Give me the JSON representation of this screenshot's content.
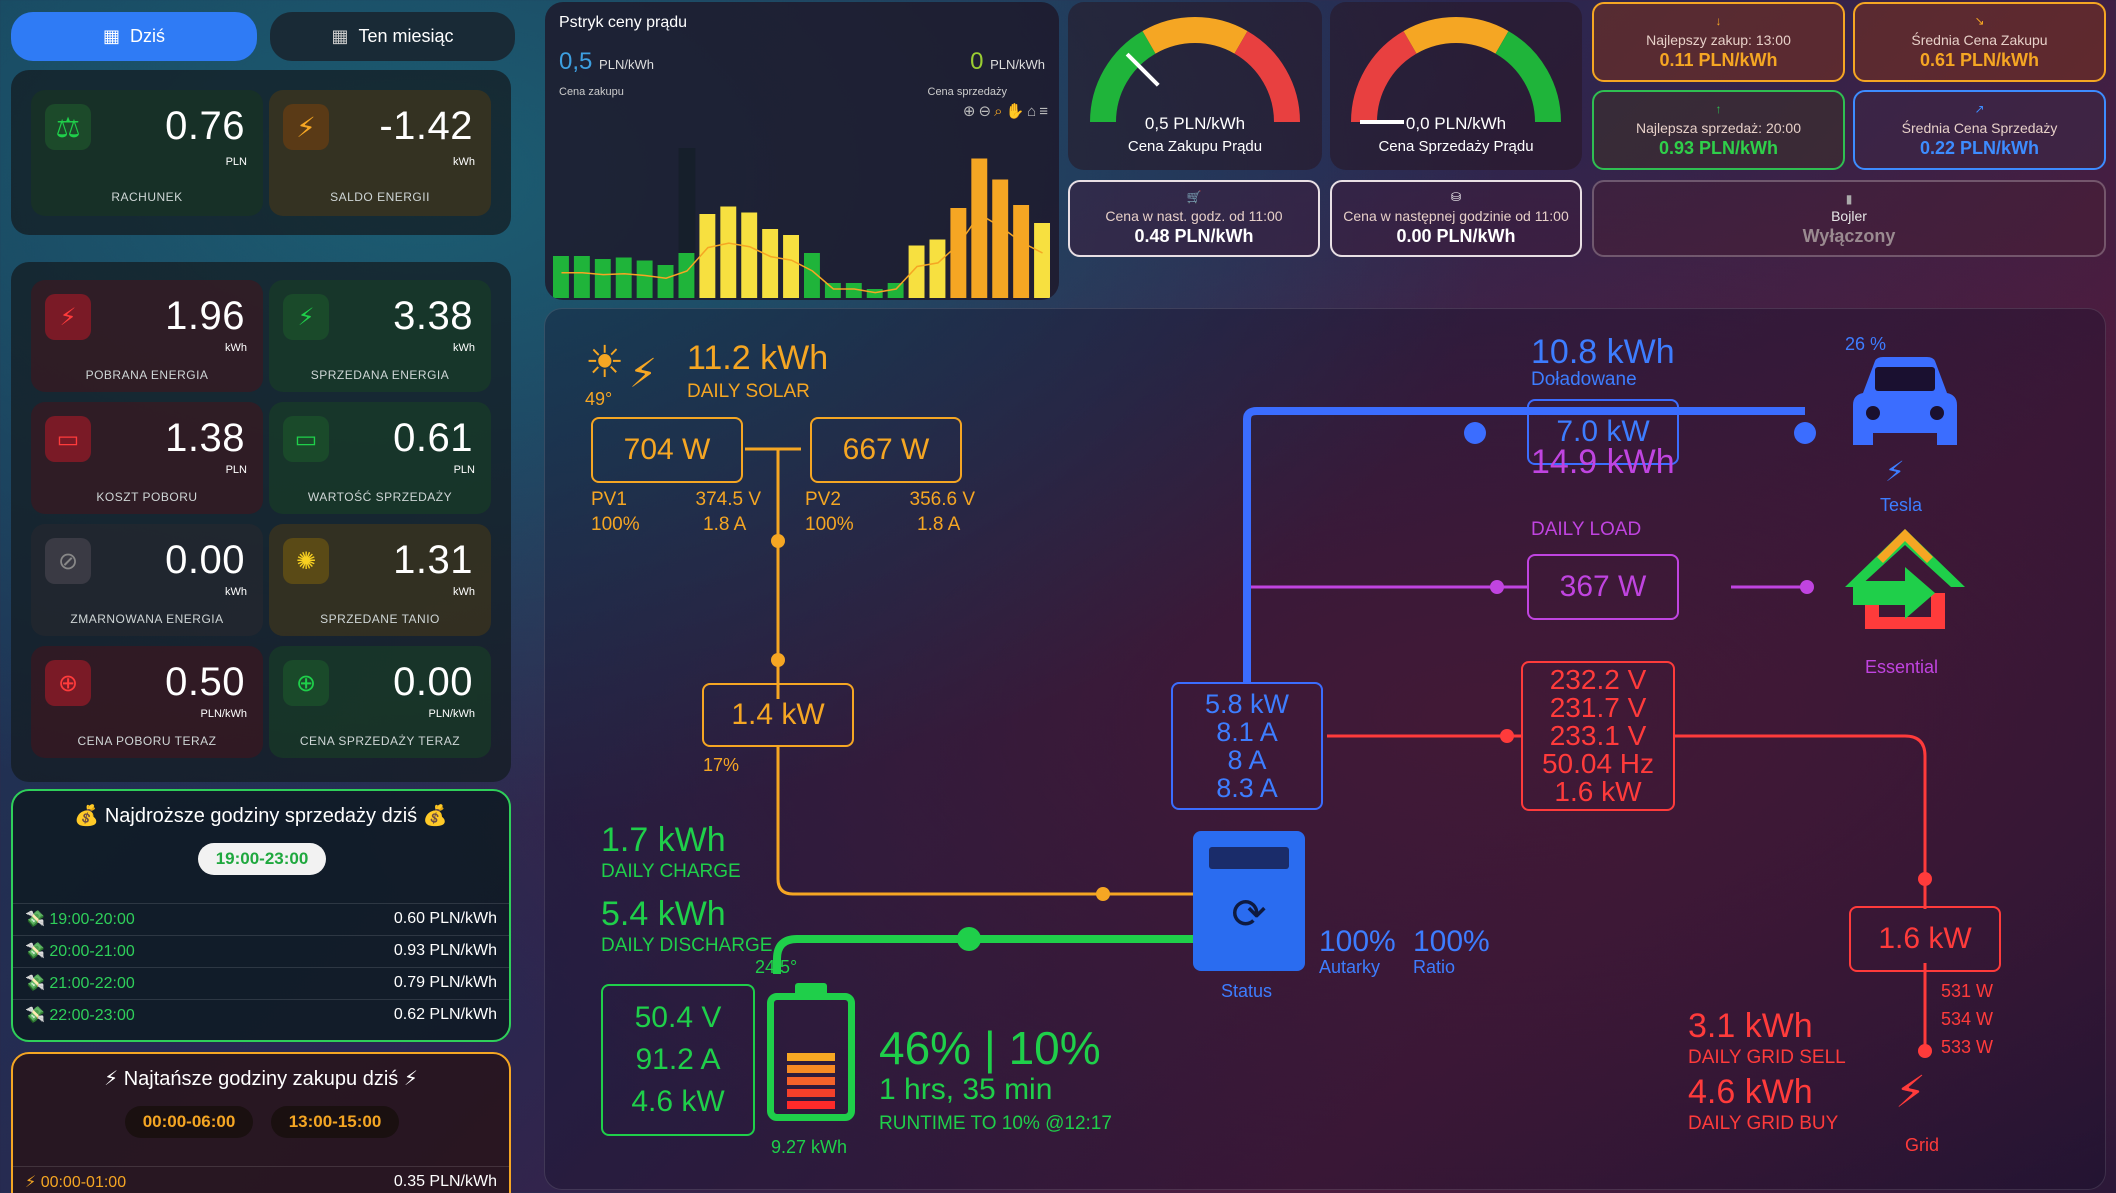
{
  "tabs": {
    "today": "Dziś",
    "month": "Ten miesiąc"
  },
  "summary": {
    "bill_value": "0.76",
    "bill_unit": "PLN",
    "bill_label": "RACHUNEK",
    "balance_value": "-1.42",
    "balance_unit": "kWh",
    "balance_label": "SALDO ENERGII"
  },
  "tiles": [
    {
      "value": "1.96",
      "unit": "kWh",
      "label": "POBRANA ENERGIA"
    },
    {
      "value": "3.38",
      "unit": "kWh",
      "label": "SPRZEDANA ENERGIA"
    },
    {
      "value": "1.38",
      "unit": "PLN",
      "label": "KOSZT POBORU"
    },
    {
      "value": "0.61",
      "unit": "PLN",
      "label": "WARTOŚĆ SPRZEDAŻY"
    },
    {
      "value": "0.00",
      "unit": "kWh",
      "label": "ZMARNOWANA ENERGIA"
    },
    {
      "value": "1.31",
      "unit": "kWh",
      "label": "SPRZEDANE TANIO"
    },
    {
      "value": "0.50",
      "unit": "PLN/kWh",
      "label": "CENA POBORU TERAZ"
    },
    {
      "value": "0.00",
      "unit": "PLN/kWh",
      "label": "CENA SPRZEDAŻY TERAZ"
    }
  ],
  "expensive": {
    "title": "💰 Najdroższe godziny sprzedaży dziś 💰",
    "range": "19:00-23:00",
    "rows": [
      [
        "19:00-20:00",
        "0.60 PLN/kWh"
      ],
      [
        "20:00-21:00",
        "0.93 PLN/kWh"
      ],
      [
        "21:00-22:00",
        "0.79 PLN/kWh"
      ],
      [
        "22:00-23:00",
        "0.62 PLN/kWh"
      ]
    ]
  },
  "cheap": {
    "title": "⚡ Najtańsze godziny zakupu dziś ⚡",
    "range1": "00:00-06:00",
    "range2": "13:00-15:00",
    "rows": [
      [
        "00:00-01:00",
        "0.35 PLN/kWh"
      ]
    ]
  },
  "chart": {
    "title": "Pstryk ceny prądu",
    "buy_value": "0,5",
    "buy_unit": "PLN/kWh",
    "buy_label": "Cena zakupu",
    "sell_value": "0",
    "sell_unit": "PLN/kWh",
    "sell_label": "Cena sprzedaży"
  },
  "chart_data": {
    "type": "bar",
    "values": [
      0.28,
      0.28,
      0.26,
      0.27,
      0.25,
      0.22,
      0.3,
      0.56,
      0.61,
      0.57,
      0.46,
      0.42,
      0.3,
      0.1,
      0.1,
      0.06,
      0.1,
      0.35,
      0.39,
      0.6,
      0.93,
      0.79,
      0.62,
      0.5
    ],
    "colors": [
      "#1fb43a",
      "#1fb43a",
      "#1fb43a",
      "#1fb43a",
      "#1fb43a",
      "#1fb43a",
      "#1fb43a",
      "#f7e040",
      "#f7e040",
      "#f7e040",
      "#f7e040",
      "#f7e040",
      "#1fb43a",
      "#1fb43a",
      "#1fb43a",
      "#1fb43a",
      "#1fb43a",
      "#f7e040",
      "#f7e040",
      "#f5a623",
      "#f5a623",
      "#f5a623",
      "#f5a623",
      "#f7e040"
    ]
  },
  "gauges": [
    {
      "value": "0,5 PLN/kWh",
      "label": "Cena Zakupu Prądu",
      "level": 0.25
    },
    {
      "value": "0,0 PLN/kWh",
      "label": "Cena Sprzedaży Prądu",
      "level": 0.0
    }
  ],
  "next_hour": [
    {
      "title": "Cena w nast. godz. od 11:00",
      "value": "0.48 PLN/kWh"
    },
    {
      "title": "Cena w następnej godzinie od 11:00",
      "value": "0.00 PLN/kWh"
    }
  ],
  "price_cards": [
    {
      "title": "Najlepszy zakup: 13:00",
      "value": "0.11 PLN/kWh"
    },
    {
      "title": "Średnia Cena Zakupu",
      "value": "0.61 PLN/kWh"
    },
    {
      "title": "Najlepsza sprzedaż: 20:00",
      "value": "0.93 PLN/kWh"
    },
    {
      "title": "Średnia Cena Sprzedaży",
      "value": "0.22 PLN/kWh"
    }
  ],
  "boiler": {
    "title": "Bojler",
    "state": "Wyłączony"
  },
  "flow": {
    "solar_kwh": "11.2 kWh",
    "solar_label": "DAILY SOLAR",
    "sun_angle": "49°",
    "pv1_w": "704 W",
    "pv2_w": "667 W",
    "pv1_name": "PV1",
    "pv1_pct": "100%",
    "pv1_v": "374.5 V",
    "pv1_a": "1.8 A",
    "pv2_name": "PV2",
    "pv2_pct": "100%",
    "pv2_v": "356.6 V",
    "pv2_a": "1.8 A",
    "pv_total": "1.4 kW",
    "pv_pct": "17%",
    "ev_kwh": "10.8 kWh",
    "ev_label": "Doładowane",
    "ev_power": "7.0 kW",
    "ev_soc": "26 %",
    "ev_name": "Tesla",
    "load_kwh": "14.9 kWh",
    "load_label": "DAILY LOAD",
    "load_power": "367 W",
    "load_name": "Essential",
    "inv_lines": [
      "5.8 kW",
      "8.1 A",
      "8 A",
      "8.3 A"
    ],
    "grid_lines": [
      "232.2 V",
      "231.7 V",
      "233.1 V",
      "50.04 Hz",
      "1.6 kW"
    ],
    "grid_power": "1.6 kW",
    "grid_phases": [
      "531 W",
      "534 W",
      "533 W"
    ],
    "grid_sell": "3.1 kWh",
    "grid_sell_label": "DAILY GRID SELL",
    "grid_buy": "4.6 kWh",
    "grid_buy_label": "DAILY GRID BUY",
    "grid_name": "Grid",
    "charge": "1.7 kWh",
    "charge_label": "DAILY CHARGE",
    "discharge": "5.4 kWh",
    "discharge_label": "DAILY DISCHARGE",
    "autarky": "100%",
    "autarky_label": "Autarky",
    "ratio": "100%",
    "ratio_label": "Ratio",
    "status_label": "Status",
    "batt_temp": "24.5°",
    "batt_v": "50.4 V",
    "batt_a": "91.2 A",
    "batt_kw": "4.6 kW",
    "batt_kwh": "9.27 kWh",
    "soc": "46% | 10%",
    "runtime": "1 hrs, 35 min",
    "runtime_label": "RUNTIME TO 10% @12:17"
  }
}
